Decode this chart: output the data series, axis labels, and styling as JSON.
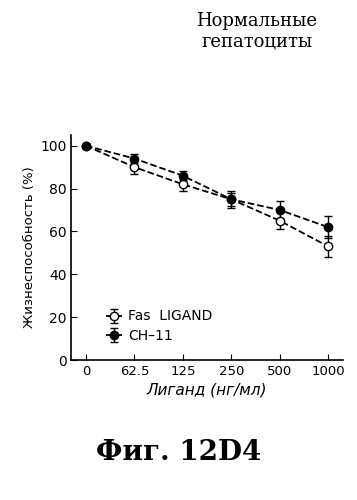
{
  "title_line1": "Нормальные",
  "title_line2": "гепатоциты",
  "xlabel": "Лиганд (нг/мл)",
  "ylabel": "Жизнеспособность (%)",
  "caption": "Фиг. 12D4",
  "x_positions": [
    0,
    1,
    2,
    3,
    4,
    5
  ],
  "xtick_labels": [
    "0",
    "62.5",
    "125",
    "250",
    "500",
    "1000"
  ],
  "fas_y": [
    100,
    90,
    82,
    75,
    65,
    53
  ],
  "fas_yerr": [
    1,
    3,
    3,
    4,
    4,
    5
  ],
  "ch11_y": [
    100,
    94,
    86,
    75,
    70,
    62
  ],
  "ch11_yerr": [
    1,
    2,
    2,
    3,
    4,
    5
  ],
  "fas_label": "Fas  LIGAND",
  "ch11_label": "CH–11",
  "ylim": [
    0,
    105
  ],
  "ytick_vals": [
    0,
    20,
    40,
    60,
    80,
    100
  ],
  "bg_color": "#ffffff"
}
